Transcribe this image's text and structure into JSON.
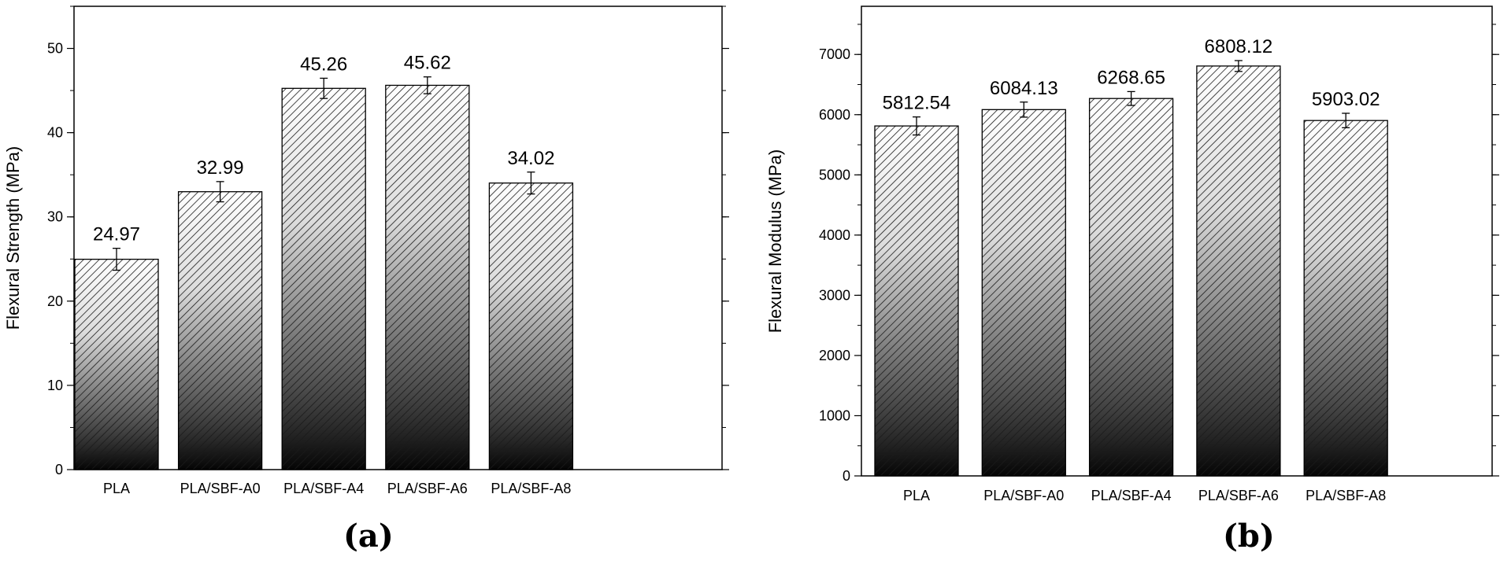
{
  "panel_labels": [
    "(a)",
    "(b)"
  ],
  "chart_data": [
    {
      "type": "bar",
      "panel": "(a)",
      "categories": [
        "PLA",
        "PLA/SBF-A0",
        "PLA/SBF-A4",
        "PLA/SBF-A6",
        "PLA/SBF-A8"
      ],
      "values": [
        24.97,
        32.99,
        45.26,
        45.62,
        34.02
      ],
      "value_labels": [
        "24.97",
        "32.99",
        "45.26",
        "45.62",
        "34.02"
      ],
      "errors": [
        1.3,
        1.2,
        1.2,
        1.0,
        1.3
      ],
      "xlabel": "",
      "ylabel": "Flexural Strength (MPa)",
      "ylim": [
        0,
        55
      ],
      "yticks": [
        0,
        10,
        20,
        30,
        40,
        50
      ],
      "grid": false,
      "bar_fill": "hatched diagonal lines with white-to-black vertical gradient"
    },
    {
      "type": "bar",
      "panel": "(b)",
      "categories": [
        "PLA",
        "PLA/SBF-A0",
        "PLA/SBF-A4",
        "PLA/SBF-A6",
        "PLA/SBF-A8"
      ],
      "values": [
        5812.54,
        6084.13,
        6268.65,
        6808.12,
        5903.02
      ],
      "value_labels": [
        "5812.54",
        "6084.13",
        "6268.65",
        "6808.12",
        "5903.02"
      ],
      "errors": [
        150,
        125,
        115,
        90,
        120
      ],
      "xlabel": "",
      "ylabel": "Flexural Modulus (MPa)",
      "ylim": [
        0,
        7800
      ],
      "yticks": [
        0,
        1000,
        2000,
        3000,
        4000,
        5000,
        6000,
        7000
      ],
      "grid": false,
      "bar_fill": "hatched diagonal lines with white-to-black vertical gradient"
    }
  ]
}
